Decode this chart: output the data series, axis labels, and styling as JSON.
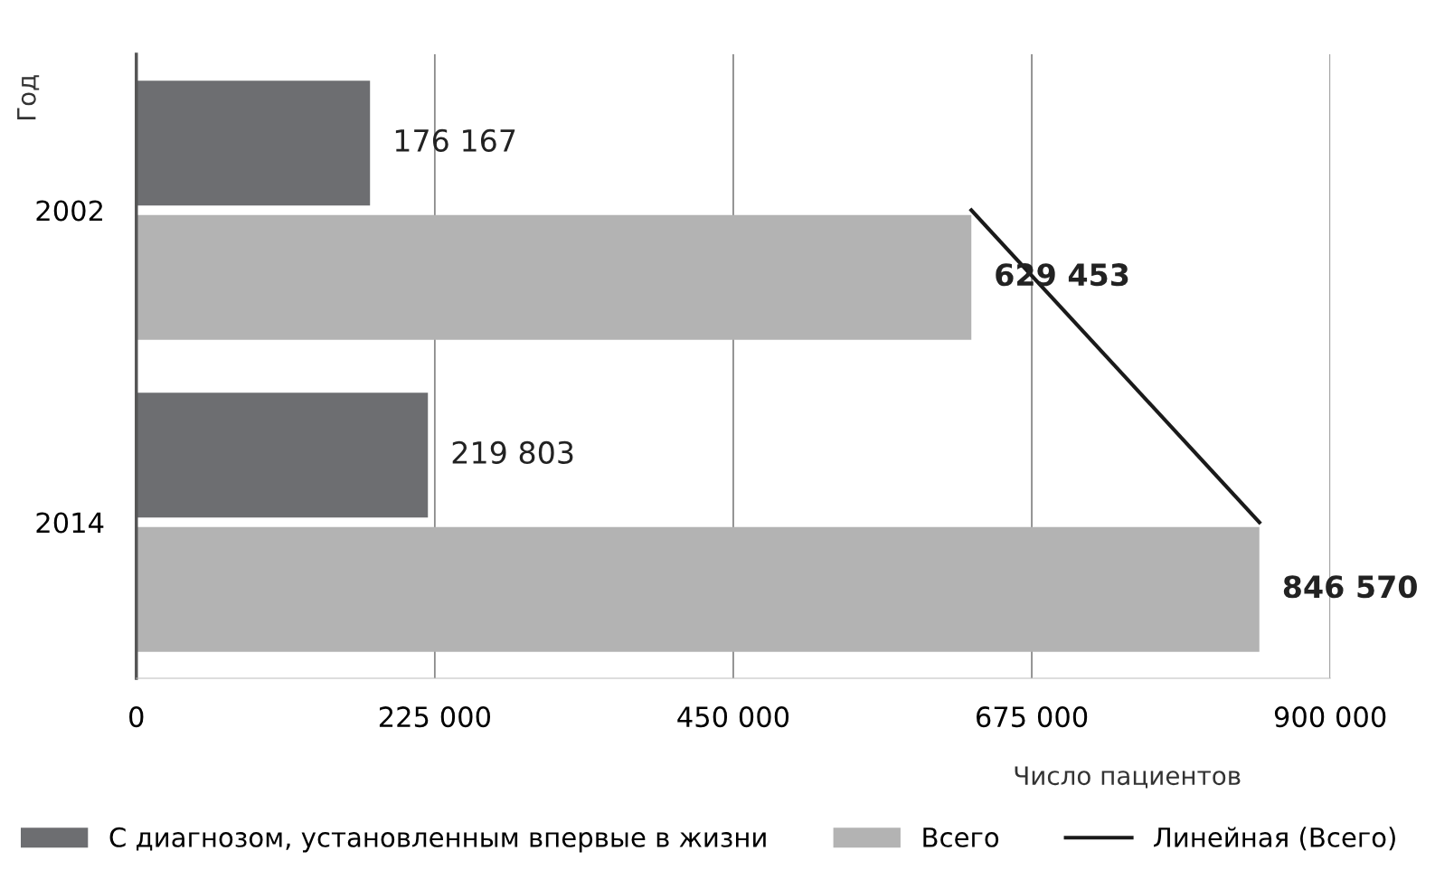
{
  "chart_data": {
    "type": "bar",
    "orientation": "horizontal",
    "xlabel": "Число пациентов",
    "ylabel": "Год",
    "categories": [
      "2002",
      "2014"
    ],
    "series": [
      {
        "name": "С диагнозом, установленным впервые в жизни",
        "color": "#6d6e71",
        "values": [
          176167,
          219803
        ],
        "value_labels": [
          "176 167",
          "219 803"
        ]
      },
      {
        "name": "Всего",
        "color": "#b3b3b3",
        "values": [
          629453,
          846570
        ],
        "value_labels": [
          "629 453",
          "846 570"
        ]
      },
      {
        "name": "Линейная (Всего)",
        "type": "line",
        "color": "#1a1a1a",
        "values": [
          629453,
          846570
        ]
      }
    ],
    "xlim": [
      0,
      900000
    ],
    "xticks": [
      0,
      {
        "value": 225000,
        "label": "225 000"
      },
      {
        "value": 450000,
        "label": "450 000"
      },
      {
        "value": 675000,
        "label": "675 000"
      },
      {
        "value": 900000,
        "label": "900 000"
      }
    ],
    "grid": "x",
    "legend": "bottom",
    "marker": "none",
    "line_style": "solid"
  }
}
